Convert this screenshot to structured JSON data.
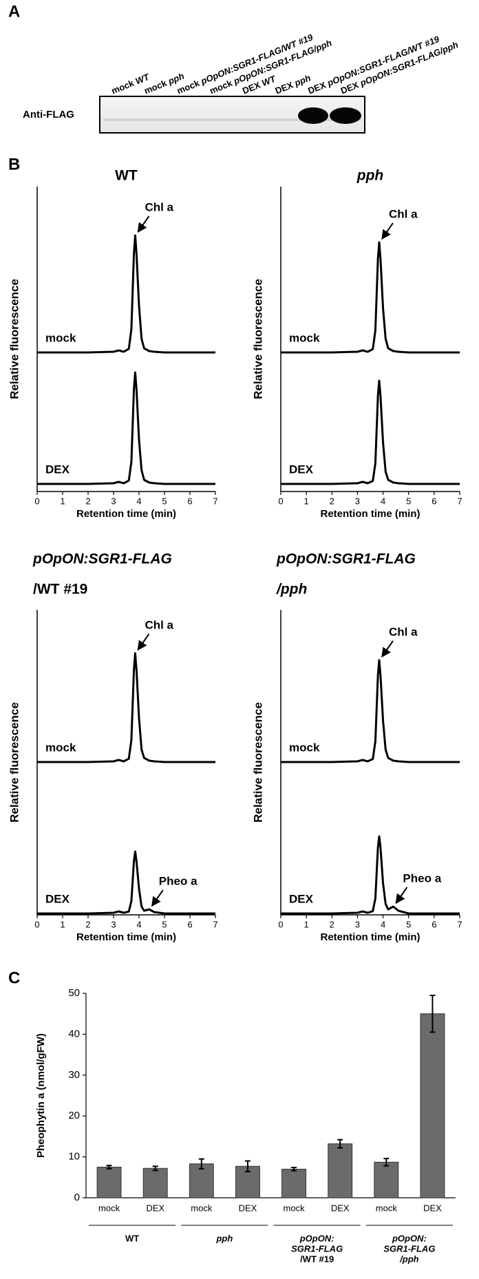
{
  "panel_labels": [
    "A",
    "B",
    "C"
  ],
  "panel_a": {
    "antibody": "Anti-FLAG",
    "lanes": [
      {
        "treatment": "mock",
        "genotype": "WT"
      },
      {
        "treatment": "mock",
        "genotype": "pph"
      },
      {
        "treatment": "mock",
        "genotype": "pOpON:SGR1-FLAG/WT #19"
      },
      {
        "treatment": "mock",
        "genotype": "pOpON:SGR1-FLAG/pph"
      },
      {
        "treatment": "DEX",
        "genotype": "WT"
      },
      {
        "treatment": "DEX",
        "genotype": "pph"
      },
      {
        "treatment": "DEX",
        "genotype": "pOpON:SGR1-FLAG/WT #19"
      },
      {
        "treatment": "DEX",
        "genotype": "pOpON:SGR1-FLAG/pph"
      }
    ]
  },
  "chart_data": [
    {
      "type": "line",
      "title": [
        "WT"
      ],
      "title_italic": [
        false
      ],
      "ylabel": "Relative fluorescence",
      "xlabel": "Retention time (min)",
      "x": [
        0,
        1,
        2,
        3,
        3.2,
        3.4,
        3.6,
        3.7,
        3.8,
        3.85,
        3.9,
        4,
        4.1,
        4.2,
        4.4,
        4.6,
        5,
        6,
        7
      ],
      "xlim": [
        0,
        7
      ],
      "xticks": [
        0,
        1,
        2,
        3,
        4,
        5,
        6,
        7
      ],
      "ylim": [
        0,
        100
      ],
      "series": [
        {
          "name": "mock",
          "color": "#000000",
          "annotation": "Chl a",
          "values": [
            0,
            0,
            0,
            0.5,
            1.5,
            0.5,
            2.6,
            17,
            72,
            85,
            72,
            34,
            10,
            3,
            1,
            0.5,
            0,
            0,
            0
          ]
        },
        {
          "name": "DEX",
          "color": "#000000",
          "values": [
            0,
            0,
            0,
            0.5,
            1.5,
            0.5,
            2.4,
            16,
            69,
            81,
            69,
            32,
            10,
            3,
            1,
            0.5,
            0,
            0,
            0
          ]
        }
      ]
    },
    {
      "type": "line",
      "title": [
        "pph"
      ],
      "title_italic": [
        true
      ],
      "ylabel": "Relative fluorescence",
      "xlabel": "Retention time (min)",
      "x": [
        0,
        1,
        2,
        3,
        3.2,
        3.4,
        3.6,
        3.7,
        3.8,
        3.85,
        3.9,
        4,
        4.1,
        4.2,
        4.4,
        4.6,
        5,
        6,
        7
      ],
      "xlim": [
        0,
        7
      ],
      "xticks": [
        0,
        1,
        2,
        3,
        4,
        5,
        6,
        7
      ],
      "ylim": [
        0,
        100
      ],
      "series": [
        {
          "name": "mock",
          "color": "#000000",
          "annotation": "Chl a",
          "values": [
            0,
            0,
            0,
            0.5,
            1.5,
            0.5,
            2.4,
            16,
            68,
            80,
            68,
            32,
            10,
            3,
            1,
            0.5,
            0,
            0,
            0
          ]
        },
        {
          "name": "DEX",
          "color": "#000000",
          "values": [
            0,
            0,
            0,
            0.5,
            1.5,
            0.5,
            2.2,
            15,
            64,
            75,
            64,
            30,
            9,
            3,
            1,
            0.5,
            0,
            0,
            0
          ]
        }
      ]
    },
    {
      "type": "line",
      "title": [
        "pOpON:SGR1-FLAG",
        "/WT #19"
      ],
      "title_italic": [
        true,
        false
      ],
      "ylabel": "Relative fluorescence",
      "xlabel": "Retention time (min)",
      "x": [
        0,
        1,
        2,
        3,
        3.2,
        3.4,
        3.6,
        3.7,
        3.8,
        3.85,
        3.9,
        4,
        4.1,
        4.2,
        4.4,
        4.6,
        5,
        6,
        7
      ],
      "xlim": [
        0,
        7
      ],
      "xticks": [
        0,
        1,
        2,
        3,
        4,
        5,
        6,
        7
      ],
      "ylim": [
        0,
        100
      ],
      "series": [
        {
          "name": "mock",
          "color": "#000000",
          "annotation": "Chl a",
          "values": [
            0,
            0,
            0,
            0.5,
            1.5,
            0.5,
            2.4,
            16,
            67,
            79,
            67,
            32,
            9,
            3,
            1,
            0.5,
            0,
            0,
            0
          ]
        },
        {
          "name": "DEX",
          "color": "#000000",
          "annotation": "Pheo a",
          "values": [
            0,
            0,
            0,
            0.5,
            1.5,
            0.5,
            1.4,
            9,
            38,
            45,
            38,
            18,
            5,
            2,
            3,
            1,
            0,
            0,
            0
          ]
        }
      ]
    },
    {
      "type": "line",
      "title": [
        "pOpON:SGR1-FLAG",
        "/pph"
      ],
      "title_italic": [
        true,
        true
      ],
      "ylabel": "Relative fluorescence",
      "xlabel": "Retention time (min)",
      "x": [
        0,
        1,
        2,
        3,
        3.2,
        3.4,
        3.6,
        3.7,
        3.8,
        3.85,
        3.9,
        4,
        4.1,
        4.2,
        4.4,
        4.6,
        5,
        6,
        7
      ],
      "xlim": [
        0,
        7
      ],
      "xticks": [
        0,
        1,
        2,
        3,
        4,
        5,
        6,
        7
      ],
      "ylim": [
        0,
        100
      ],
      "series": [
        {
          "name": "mock",
          "color": "#000000",
          "annotation": "Chl a",
          "values": [
            0,
            0,
            0,
            0.5,
            1.5,
            0.5,
            2.2,
            15,
            63,
            74,
            63,
            30,
            9,
            3,
            1,
            0.5,
            0,
            0,
            0
          ]
        },
        {
          "name": "DEX",
          "color": "#000000",
          "annotation": "Pheo a",
          "values": [
            0,
            0,
            0,
            0.5,
            1.5,
            0.5,
            1.7,
            11,
            48,
            56,
            48,
            22,
            7,
            3,
            5,
            2,
            0,
            0,
            0
          ]
        }
      ]
    },
    {
      "type": "bar",
      "ylabel": "Pheophytin a (nmol/gFW)",
      "categories": [
        "mock",
        "DEX",
        "mock",
        "DEX",
        "mock",
        "DEX",
        "mock",
        "DEX"
      ],
      "groups": [
        {
          "lines": [
            "WT"
          ],
          "italic": [
            false
          ]
        },
        {
          "lines": [
            "pph"
          ],
          "italic": [
            true
          ]
        },
        {
          "lines": [
            "pOpON:",
            "SGR1-FLAG",
            "/WT #19"
          ],
          "italic": [
            true,
            true,
            false
          ]
        },
        {
          "lines": [
            "pOpON:",
            "SGR1-FLAG",
            "/pph"
          ],
          "italic": [
            true,
            true,
            true
          ]
        }
      ],
      "values": [
        7.5,
        7.2,
        8.3,
        7.7,
        7.0,
        13.2,
        8.7,
        45
      ],
      "errors": [
        0.4,
        0.5,
        1.2,
        1.3,
        0.4,
        1.0,
        0.9,
        4.5
      ],
      "color": "#6b6b6b",
      "ylim": [
        0,
        50
      ],
      "yticks": [
        0,
        10,
        20,
        30,
        40,
        50
      ]
    }
  ]
}
